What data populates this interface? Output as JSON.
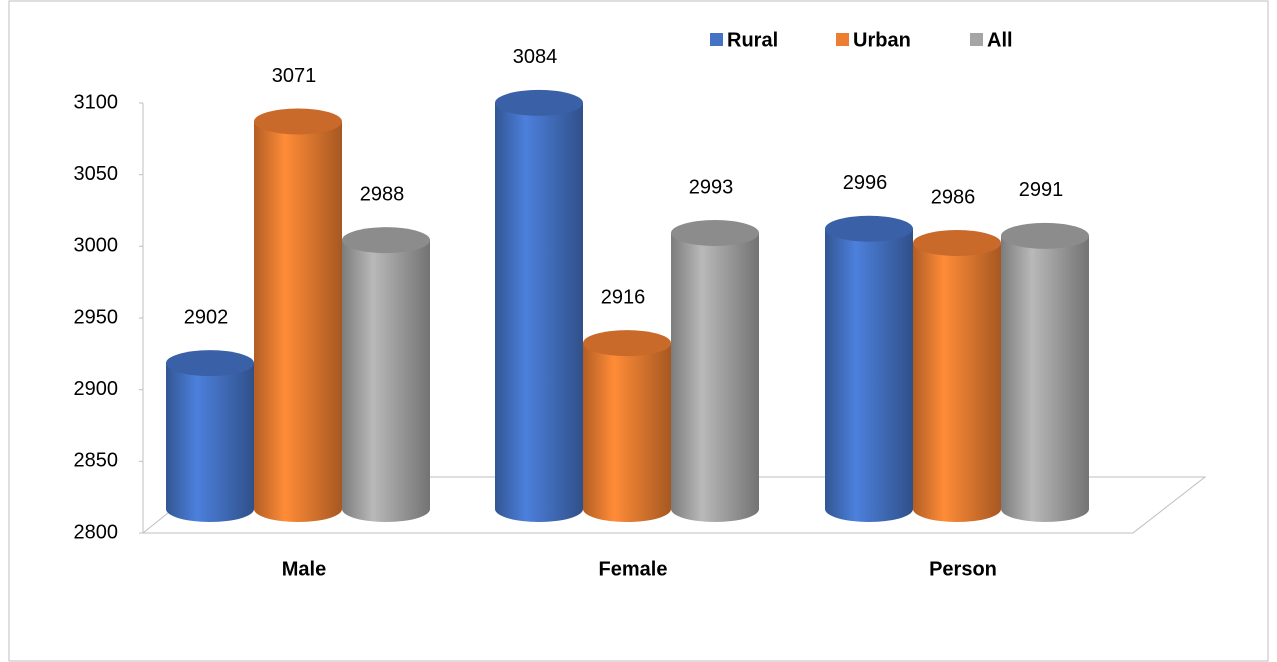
{
  "chart_data": {
    "type": "bar3d",
    "categories": [
      "Male",
      "Female",
      "Person"
    ],
    "series": [
      {
        "name": "Rural",
        "color": "#4472c4",
        "values": [
          2902,
          3084,
          2996
        ]
      },
      {
        "name": "Urban",
        "color": "#ed7d31",
        "values": [
          3071,
          2916,
          2986
        ]
      },
      {
        "name": "All",
        "color": "#a5a5a5",
        "values": [
          2988,
          2993,
          2991
        ]
      }
    ],
    "ylim": [
      2800,
      3100
    ],
    "yticks": [
      2800,
      2850,
      2900,
      2950,
      3000,
      3050,
      3100
    ],
    "grid": false,
    "legend": "top-right"
  }
}
